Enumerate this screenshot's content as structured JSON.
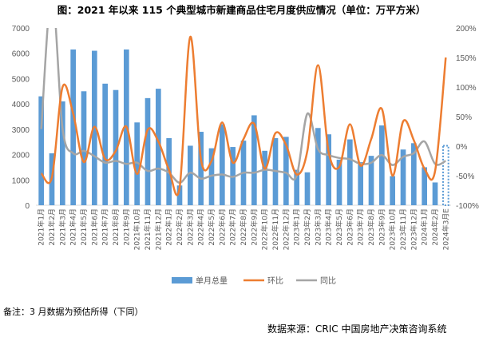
{
  "chart_data": {
    "type": "bar+line",
    "title": "图：2021 年以来 115 个典型城市新建商品住宅月度供应情况（单位：万平方米）",
    "categories": [
      "2021年1月",
      "2021年2月",
      "2021年3月",
      "2021年4月",
      "2021年5月",
      "2021年6月",
      "2021年7月",
      "2021年8月",
      "2021年9月",
      "2021年10月",
      "2021年11月",
      "2021年12月",
      "2022年1月",
      "2022年2月",
      "2022年3月",
      "2022年4月",
      "2022年5月",
      "2022年6月",
      "2022年7月",
      "2022年8月",
      "2022年9月",
      "2022年10月",
      "2022年11月",
      "2022年12月",
      "2023年1月",
      "2023年2月",
      "2023年3月",
      "2023年4月",
      "2023年5月",
      "2023年6月",
      "2023年7月",
      "2023年8月",
      "2023年9月",
      "2023年10月",
      "2023年11月",
      "2023年12月",
      "2024年1月",
      "2024年2月",
      "2024年3月E"
    ],
    "y_left": {
      "ylim": [
        0,
        7000
      ],
      "ticks": [
        "0",
        "1000",
        "2000",
        "3000",
        "4000",
        "5000",
        "6000",
        "7000"
      ]
    },
    "y_right": {
      "ylim": [
        -100,
        200
      ],
      "ticks": [
        "-100%",
        "-50%",
        "0%",
        "50%",
        "100%",
        "150%",
        "200%"
      ]
    },
    "series": [
      {
        "name": "单月总量",
        "type": "bar",
        "axis": "left",
        "color": "#5B9BD5",
        "last_estimated": true,
        "values": [
          4300,
          2050,
          4100,
          6150,
          4500,
          6100,
          4800,
          4550,
          6150,
          3270,
          4230,
          4600,
          2650,
          780,
          2350,
          2900,
          2250,
          3200,
          2300,
          2550,
          3550,
          2150,
          2650,
          2700,
          1400,
          1300,
          3050,
          2800,
          1800,
          2600,
          1700,
          1950,
          3150,
          1150,
          2200,
          2450,
          1500,
          900,
          2350
        ]
      },
      {
        "name": "环比",
        "type": "line",
        "axis": "right",
        "color": "#ED7D31",
        "values": [
          -46,
          -53,
          100,
          55,
          -27,
          33,
          -22,
          -8,
          33,
          -47,
          28,
          8,
          -40,
          -70,
          185,
          -22,
          -25,
          40,
          -28,
          12,
          38,
          -38,
          22,
          2,
          -48,
          -8,
          137,
          -10,
          -35,
          37,
          -33,
          12,
          63,
          -50,
          42,
          10,
          -38,
          -42,
          150
        ]
      },
      {
        "name": "同比",
        "type": "line",
        "axis": "right",
        "color": "#A5A5A5",
        "values": [
          29,
          260,
          30,
          -12,
          -8,
          -17,
          -28,
          -25,
          -30,
          -28,
          -42,
          -38,
          -45,
          -62,
          -45,
          -55,
          -50,
          -48,
          -52,
          -45,
          -45,
          -40,
          -42,
          -45,
          -50,
          55,
          -5,
          -15,
          -20,
          -22,
          -30,
          -28,
          -15,
          -32,
          -18,
          -12,
          8,
          -30,
          -25
        ]
      }
    ],
    "legend": "bottom",
    "grid": false
  },
  "footnote": "备注：3 月数据为预估所得（下同）",
  "source": "数据来源：CRIC 中国房地产决策咨询系统"
}
